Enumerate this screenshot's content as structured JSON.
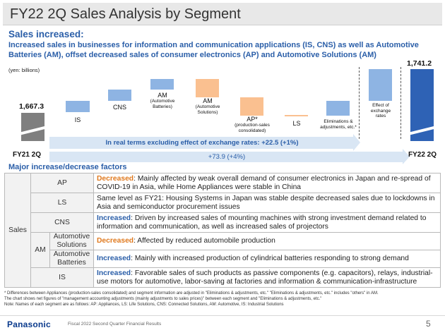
{
  "slide": {
    "title": "FY22 2Q Sales Analysis by Segment",
    "headline": "Sales increased:",
    "subline": "Increased sales in businesses for information and communication applications (IS, CNS) as well as Automotive Batteries (AM), offset decreased sales of consumer electronics (AP) and Automotive Solutions (AM)",
    "unit": "(yen: billions)"
  },
  "waterfall": {
    "start_value": "1,667.3",
    "end_value": "1,741.2",
    "start_label": "FY21 2Q",
    "end_label": "FY22 2Q",
    "steps": [
      {
        "label": "IS"
      },
      {
        "label": "CNS"
      },
      {
        "label": "AM\n(Automotive\nBatteries)"
      },
      {
        "label": "AM\n(Automotive\nSolutions)"
      },
      {
        "label": "AP*\n(production-sales\nconsolidated)"
      },
      {
        "label": "LS"
      },
      {
        "label": "Eliminations &\nadjustments, etc.*"
      },
      {
        "label": "Effect of\nexchange\nrates"
      }
    ],
    "arrow_real_terms": "In real terms excluding effect of exchange rates: +22.5 (+1%)",
    "arrow_total": "+73.9 (+4%)",
    "colors": {
      "start": "#7f7f7f",
      "end": "#2e62b5",
      "increase": "#8eb4e3",
      "decrease": "#fac090"
    }
  },
  "factors": {
    "heading": "Major increase/decrease factors",
    "group_label": "Sales",
    "am_label": "AM",
    "rows": [
      {
        "segment": "AP",
        "keyword": "Decreased",
        "type": "dec",
        "text": ": Mainly affected by weak overall demand of consumer electronics in Japan and re-spread of COVID-19 in Asia, while Home Appliances were stable in China"
      },
      {
        "segment": "LS",
        "keyword": "",
        "type": "none",
        "text": "Same level as FY21: Housing Systems in Japan was stable despite decreased sales due to lockdowns in Asia and semiconductor procurement issues"
      },
      {
        "segment": "CNS",
        "keyword": "Increased",
        "type": "inc",
        "text": ": Driven by increased sales of mounting machines with strong investment demand related to information and communication, as well as increased sales of projectors"
      },
      {
        "segment": "Automotive Solutions",
        "keyword": "Decreased",
        "type": "dec",
        "text": ": Affected by reduced automobile production"
      },
      {
        "segment": "Automotive Batteries",
        "keyword": "Increased",
        "type": "inc",
        "text": ": Mainly with increased production of cylindrical batteries responding to strong demand"
      },
      {
        "segment": "IS",
        "keyword": "Increased",
        "type": "inc",
        "text": ": Favorable sales of such products as passive components (e.g. capacitors), relays, industrial-use motors for automotive, labor-saving at factories and information & communication-infrastructure"
      }
    ]
  },
  "notes": [
    "* Differences between Appliances (production-sales consolidated) and segment information are adjusted in \"Eliminations & adjustments, etc.\" \"Eliminations & adjustments, etc.\" includes \"others\" in AM.",
    "  The chart shows net figures of \"management accounting adjustments (mainly adjustments to sales prices)\" between each segment and \"Eliminations & adjustments, etc.\"",
    "  Note: Names of each segment are as follows: AP: Appliances, LS: Life Solutions, CNS: Connected Solutions, AM: Automotive, IS: Industrial Solutions"
  ],
  "footer": {
    "logo": "Panasonic",
    "text": "Fiscal 2022 Second Quarter Financial Results",
    "page": "5"
  }
}
